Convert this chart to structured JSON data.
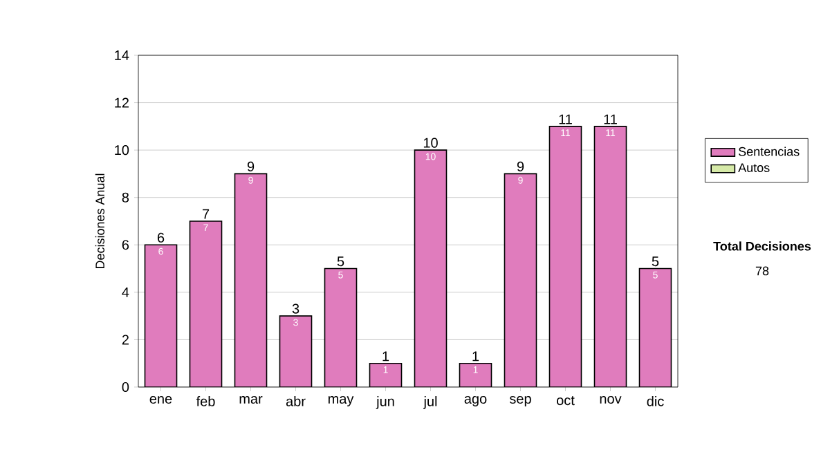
{
  "chart_data": {
    "type": "bar",
    "stacked": true,
    "ylabel": "Decisiones Anual",
    "categories": [
      "ene",
      "feb",
      "mar",
      "abr",
      "may",
      "jun",
      "jul",
      "ago",
      "sep",
      "oct",
      "nov",
      "dic"
    ],
    "series": [
      {
        "name": "Sentencias",
        "color": "#e07cbd",
        "values": [
          6,
          7,
          9,
          3,
          5,
          1,
          10,
          1,
          9,
          11,
          11,
          5
        ],
        "value_labels": [
          "6",
          "7",
          "9",
          "3",
          "5",
          "1",
          "10",
          "1",
          "9",
          "11",
          "11",
          "5"
        ]
      },
      {
        "name": "Autos",
        "color": "#d6eaa8",
        "values": [
          0,
          0,
          0,
          0,
          0,
          0,
          0,
          0,
          0,
          0,
          0,
          0
        ]
      }
    ],
    "ylim": [
      0,
      14
    ],
    "yticks": [
      0,
      2,
      4,
      6,
      8,
      10,
      12,
      14
    ],
    "grid": "y",
    "legend": "right",
    "totals": [
      "6",
      "7",
      "9",
      "3",
      "5",
      "1",
      "10",
      "1",
      "9",
      "11",
      "11",
      "5"
    ],
    "annotations": [
      "Total Decisiones",
      "78"
    ]
  }
}
